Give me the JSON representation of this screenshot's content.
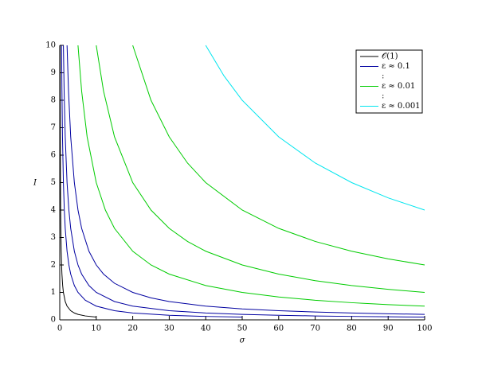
{
  "chart_data": {
    "type": "line",
    "x_label": "σ",
    "y_label": "I",
    "xlim": [
      0,
      100
    ],
    "xticks": [
      0,
      10,
      20,
      30,
      40,
      50,
      60,
      70,
      80,
      90,
      100
    ],
    "ylim": [
      0,
      10
    ],
    "yticks": [
      0,
      1,
      2,
      3,
      4,
      5,
      6,
      7,
      8,
      9,
      10
    ],
    "legend": "upper right",
    "legend_spacers": [
      ":",
      ":"
    ],
    "series": [
      {
        "name": "𝒪(1)",
        "color": "#000000",
        "lines": [
          {
            "x": [
              0.1,
              0.12,
              0.15,
              0.2,
              0.25,
              0.3,
              0.4,
              0.5,
              0.6,
              0.8,
              1,
              1.5,
              2,
              3,
              4,
              5,
              7,
              10
            ],
            "values": [
              10,
              8.333,
              6.667,
              5,
              4,
              3.333,
              2.5,
              2,
              1.667,
              1.25,
              1,
              0.667,
              0.5,
              0.333,
              0.25,
              0.2,
              0.143,
              0.1
            ]
          }
        ]
      },
      {
        "name": "ε ≈ 0.1",
        "color": "#0000a0",
        "lines": [
          {
            "x": [
              0.5,
              0.6,
              0.75,
              1,
              1.25,
              1.5,
              2,
              2.5,
              3,
              4,
              5,
              7,
              10,
              15,
              20,
              30,
              40,
              50
            ],
            "values": [
              10,
              8.333,
              6.667,
              5,
              4,
              3.333,
              2.5,
              2,
              1.667,
              1.25,
              1,
              0.714,
              0.5,
              0.333,
              0.25,
              0.167,
              0.125,
              0.1
            ]
          },
          {
            "x": [
              1,
              1.2,
              1.5,
              2,
              2.5,
              3,
              4,
              5,
              6,
              8,
              10,
              15,
              20,
              30,
              40,
              50,
              60,
              70,
              80,
              90,
              100
            ],
            "values": [
              10,
              8.333,
              6.667,
              5,
              4,
              3.333,
              2.5,
              2,
              1.667,
              1.25,
              1,
              0.667,
              0.5,
              0.333,
              0.25,
              0.2,
              0.167,
              0.143,
              0.125,
              0.111,
              0.1
            ]
          },
          {
            "x": [
              2,
              2.4,
              3,
              4,
              5,
              6,
              8,
              10,
              12,
              15,
              20,
              25,
              30,
              40,
              50,
              60,
              70,
              80,
              90,
              100
            ],
            "values": [
              10,
              8.333,
              6.667,
              5,
              4,
              3.333,
              2.5,
              2,
              1.667,
              1.333,
              1,
              0.8,
              0.667,
              0.5,
              0.4,
              0.333,
              0.286,
              0.25,
              0.222,
              0.2
            ]
          }
        ]
      },
      {
        "name": "ε ≈ 0.01",
        "color": "#00cc00",
        "lines": [
          {
            "x": [
              5,
              6,
              7.5,
              10,
              12.5,
              15,
              20,
              25,
              30,
              40,
              50,
              60,
              70,
              80,
              90,
              100
            ],
            "values": [
              10,
              8.333,
              6.667,
              5,
              4,
              3.333,
              2.5,
              2,
              1.667,
              1.25,
              1,
              0.833,
              0.714,
              0.625,
              0.556,
              0.5
            ]
          },
          {
            "x": [
              10,
              12,
              15,
              20,
              25,
              30,
              35,
              40,
              50,
              60,
              70,
              80,
              90,
              100
            ],
            "values": [
              10,
              8.333,
              6.667,
              5,
              4,
              3.333,
              2.857,
              2.5,
              2,
              1.667,
              1.429,
              1.25,
              1.111,
              1
            ]
          },
          {
            "x": [
              20,
              25,
              30,
              35,
              40,
              50,
              60,
              70,
              80,
              90,
              100
            ],
            "values": [
              10,
              8,
              6.667,
              5.714,
              5,
              4,
              3.333,
              2.857,
              2.5,
              2.222,
              2
            ]
          }
        ]
      },
      {
        "name": "ε ≈ 0.001",
        "color": "#00e5ee",
        "lines": [
          {
            "x": [
              40,
              45,
              50,
              60,
              70,
              80,
              90,
              100
            ],
            "values": [
              10,
              8.889,
              8,
              6.667,
              5.714,
              5,
              4.444,
              4
            ]
          }
        ]
      }
    ]
  }
}
